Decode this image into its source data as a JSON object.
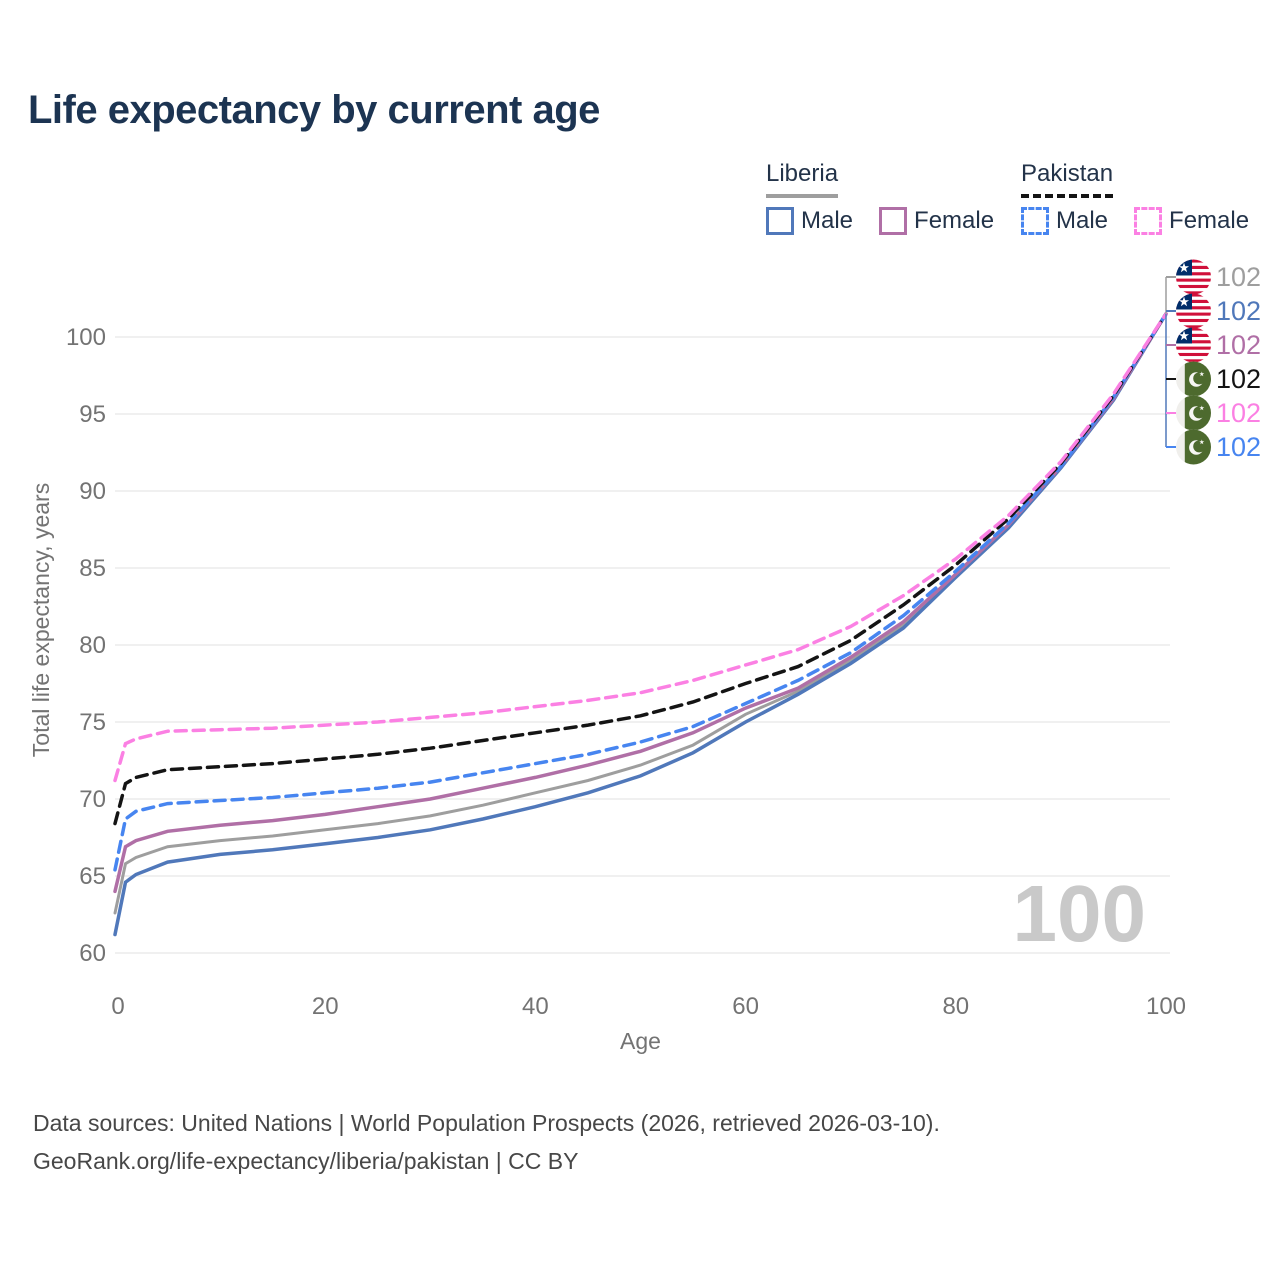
{
  "title": "Life expectancy by current age",
  "legend": {
    "groups": [
      {
        "country": "Liberia",
        "line_style": "solid",
        "underline_color": "#9e9e9e",
        "items": [
          {
            "label": "Male",
            "color": "#5078ba",
            "dashed": false
          },
          {
            "label": "Female",
            "color": "#b06fa6",
            "dashed": false
          }
        ]
      },
      {
        "country": "Pakistan",
        "line_style": "dashed",
        "underline_color": "#141414",
        "items": [
          {
            "label": "Male",
            "color": "#4785f0",
            "dashed": true
          },
          {
            "label": "Female",
            "color": "#fb80e3",
            "dashed": true
          }
        ]
      }
    ]
  },
  "chart_data": {
    "type": "line",
    "title": "Life expectancy by current age",
    "xlabel": "Age",
    "ylabel": "Total life expectancy, years",
    "xlim": [
      0,
      100
    ],
    "ylim": [
      60,
      102
    ],
    "x_ticks": [
      0,
      20,
      40,
      60,
      80,
      100
    ],
    "y_ticks": [
      60,
      65,
      70,
      75,
      80,
      85,
      90,
      95,
      100
    ],
    "grid": "horizontal-only",
    "legend_position": "top-right",
    "watermark": "100",
    "x": [
      0,
      1,
      2,
      5,
      10,
      15,
      20,
      25,
      30,
      35,
      40,
      45,
      50,
      55,
      60,
      65,
      70,
      75,
      80,
      85,
      90,
      95,
      100
    ],
    "series": [
      {
        "name": "Liberia (both sexes)",
        "country": "Liberia",
        "color": "#9e9e9e",
        "dashed": false,
        "width": 3,
        "values": [
          62.6,
          65.8,
          66.2,
          66.9,
          67.3,
          67.6,
          68.0,
          68.4,
          68.9,
          69.6,
          70.4,
          71.2,
          72.2,
          73.5,
          75.5,
          77.0,
          79.0,
          81.3,
          84.5,
          87.7,
          91.5,
          96.0,
          101.5
        ]
      },
      {
        "name": "Liberia Male",
        "country": "Liberia",
        "color": "#5078ba",
        "dashed": false,
        "width": 3.5,
        "values": [
          61.2,
          64.6,
          65.1,
          65.9,
          66.4,
          66.7,
          67.1,
          67.5,
          68.0,
          68.7,
          69.5,
          70.4,
          71.5,
          73.0,
          75.0,
          76.8,
          78.8,
          81.1,
          84.4,
          87.6,
          91.5,
          95.9,
          101.5
        ]
      },
      {
        "name": "Liberia Female",
        "country": "Liberia",
        "color": "#b06fa6",
        "dashed": false,
        "width": 3.5,
        "values": [
          64.0,
          66.9,
          67.3,
          67.9,
          68.3,
          68.6,
          69.0,
          69.5,
          70.0,
          70.7,
          71.4,
          72.2,
          73.1,
          74.3,
          75.9,
          77.2,
          79.2,
          81.5,
          84.6,
          87.8,
          91.6,
          96.0,
          101.5
        ]
      },
      {
        "name": "Pakistan Male",
        "country": "Pakistan",
        "color": "#4785f0",
        "dashed": true,
        "width": 3.5,
        "values": [
          65.4,
          68.7,
          69.2,
          69.7,
          69.9,
          70.1,
          70.4,
          70.7,
          71.1,
          71.7,
          72.3,
          72.9,
          73.7,
          74.7,
          76.2,
          77.7,
          79.5,
          81.9,
          84.8,
          87.9,
          91.6,
          96.1,
          101.5
        ]
      },
      {
        "name": "Pakistan (both sexes)",
        "country": "Pakistan",
        "color": "#141414",
        "dashed": true,
        "width": 3.5,
        "values": [
          68.4,
          71.0,
          71.4,
          71.9,
          72.1,
          72.3,
          72.6,
          72.9,
          73.3,
          73.8,
          74.3,
          74.8,
          75.4,
          76.3,
          77.5,
          78.6,
          80.3,
          82.6,
          85.2,
          88.2,
          91.8,
          96.2,
          101.5
        ]
      },
      {
        "name": "Pakistan Female",
        "country": "Pakistan",
        "color": "#fb80e3",
        "dashed": true,
        "width": 3.5,
        "values": [
          71.2,
          73.6,
          73.9,
          74.4,
          74.5,
          74.6,
          74.8,
          75.0,
          75.3,
          75.6,
          76.0,
          76.4,
          76.9,
          77.7,
          78.7,
          79.7,
          81.2,
          83.2,
          85.6,
          88.4,
          91.9,
          96.3,
          101.5
        ]
      }
    ],
    "end_labels": [
      {
        "flag": "liberia",
        "series": "Liberia (both sexes)",
        "value": "102",
        "color": "#9e9e9e"
      },
      {
        "flag": "liberia",
        "series": "Liberia Male",
        "value": "102",
        "color": "#5078ba"
      },
      {
        "flag": "liberia",
        "series": "Liberia Female",
        "value": "102",
        "color": "#b06fa6"
      },
      {
        "flag": "pakistan",
        "series": "Pakistan (both sexes)",
        "value": "102",
        "color": "#141414"
      },
      {
        "flag": "pakistan",
        "series": "Pakistan Female",
        "value": "102",
        "color": "#fb80e3"
      },
      {
        "flag": "pakistan",
        "series": "Pakistan Male",
        "value": "102",
        "color": "#4785f0"
      }
    ]
  },
  "source": {
    "line1": "Data sources: United Nations | World Population Prospects (2026, retrieved 2026-03-10).",
    "line2": "GeoRank.org/life-expectancy/liberia/pakistan | CC BY"
  }
}
